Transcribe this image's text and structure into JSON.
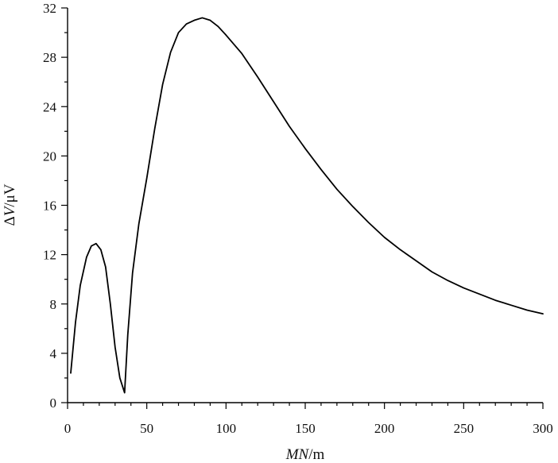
{
  "chart_data": {
    "type": "line",
    "title": "",
    "xlabel": "MN/m",
    "ylabel": "ΔV/μV",
    "xlim": [
      0,
      300
    ],
    "ylim": [
      0,
      32
    ],
    "x_ticks": [
      0,
      50,
      100,
      150,
      200,
      250,
      300
    ],
    "y_ticks": [
      0,
      4,
      8,
      12,
      16,
      20,
      24,
      28,
      32
    ],
    "grid": false,
    "series": [
      {
        "color": "#000000",
        "x": [
          2,
          5,
          8,
          12,
          15,
          18,
          21,
          24,
          27,
          30,
          33,
          36,
          38,
          41,
          45,
          50,
          55,
          60,
          65,
          70,
          75,
          80,
          85,
          90,
          95,
          100,
          110,
          120,
          130,
          140,
          150,
          160,
          170,
          180,
          190,
          200,
          210,
          220,
          230,
          240,
          250,
          260,
          270,
          280,
          290,
          300
        ],
        "y": [
          2.4,
          6.5,
          9.5,
          11.8,
          12.7,
          12.9,
          12.4,
          11.0,
          8.0,
          4.5,
          2.0,
          0.8,
          5.5,
          10.5,
          14.5,
          18.2,
          22.2,
          25.8,
          28.4,
          30.0,
          30.7,
          31.0,
          31.2,
          31.0,
          30.5,
          29.8,
          28.3,
          26.4,
          24.4,
          22.4,
          20.6,
          18.9,
          17.3,
          15.9,
          14.6,
          13.4,
          12.4,
          11.5,
          10.6,
          9.9,
          9.3,
          8.8,
          8.3,
          7.9,
          7.5,
          7.2
        ]
      }
    ]
  },
  "axes": {
    "x_title_italic": "MN",
    "x_title_rest": "/m",
    "y_title_prefix": "Δ",
    "y_title_italic": "V",
    "y_title_rest": "/μV"
  }
}
